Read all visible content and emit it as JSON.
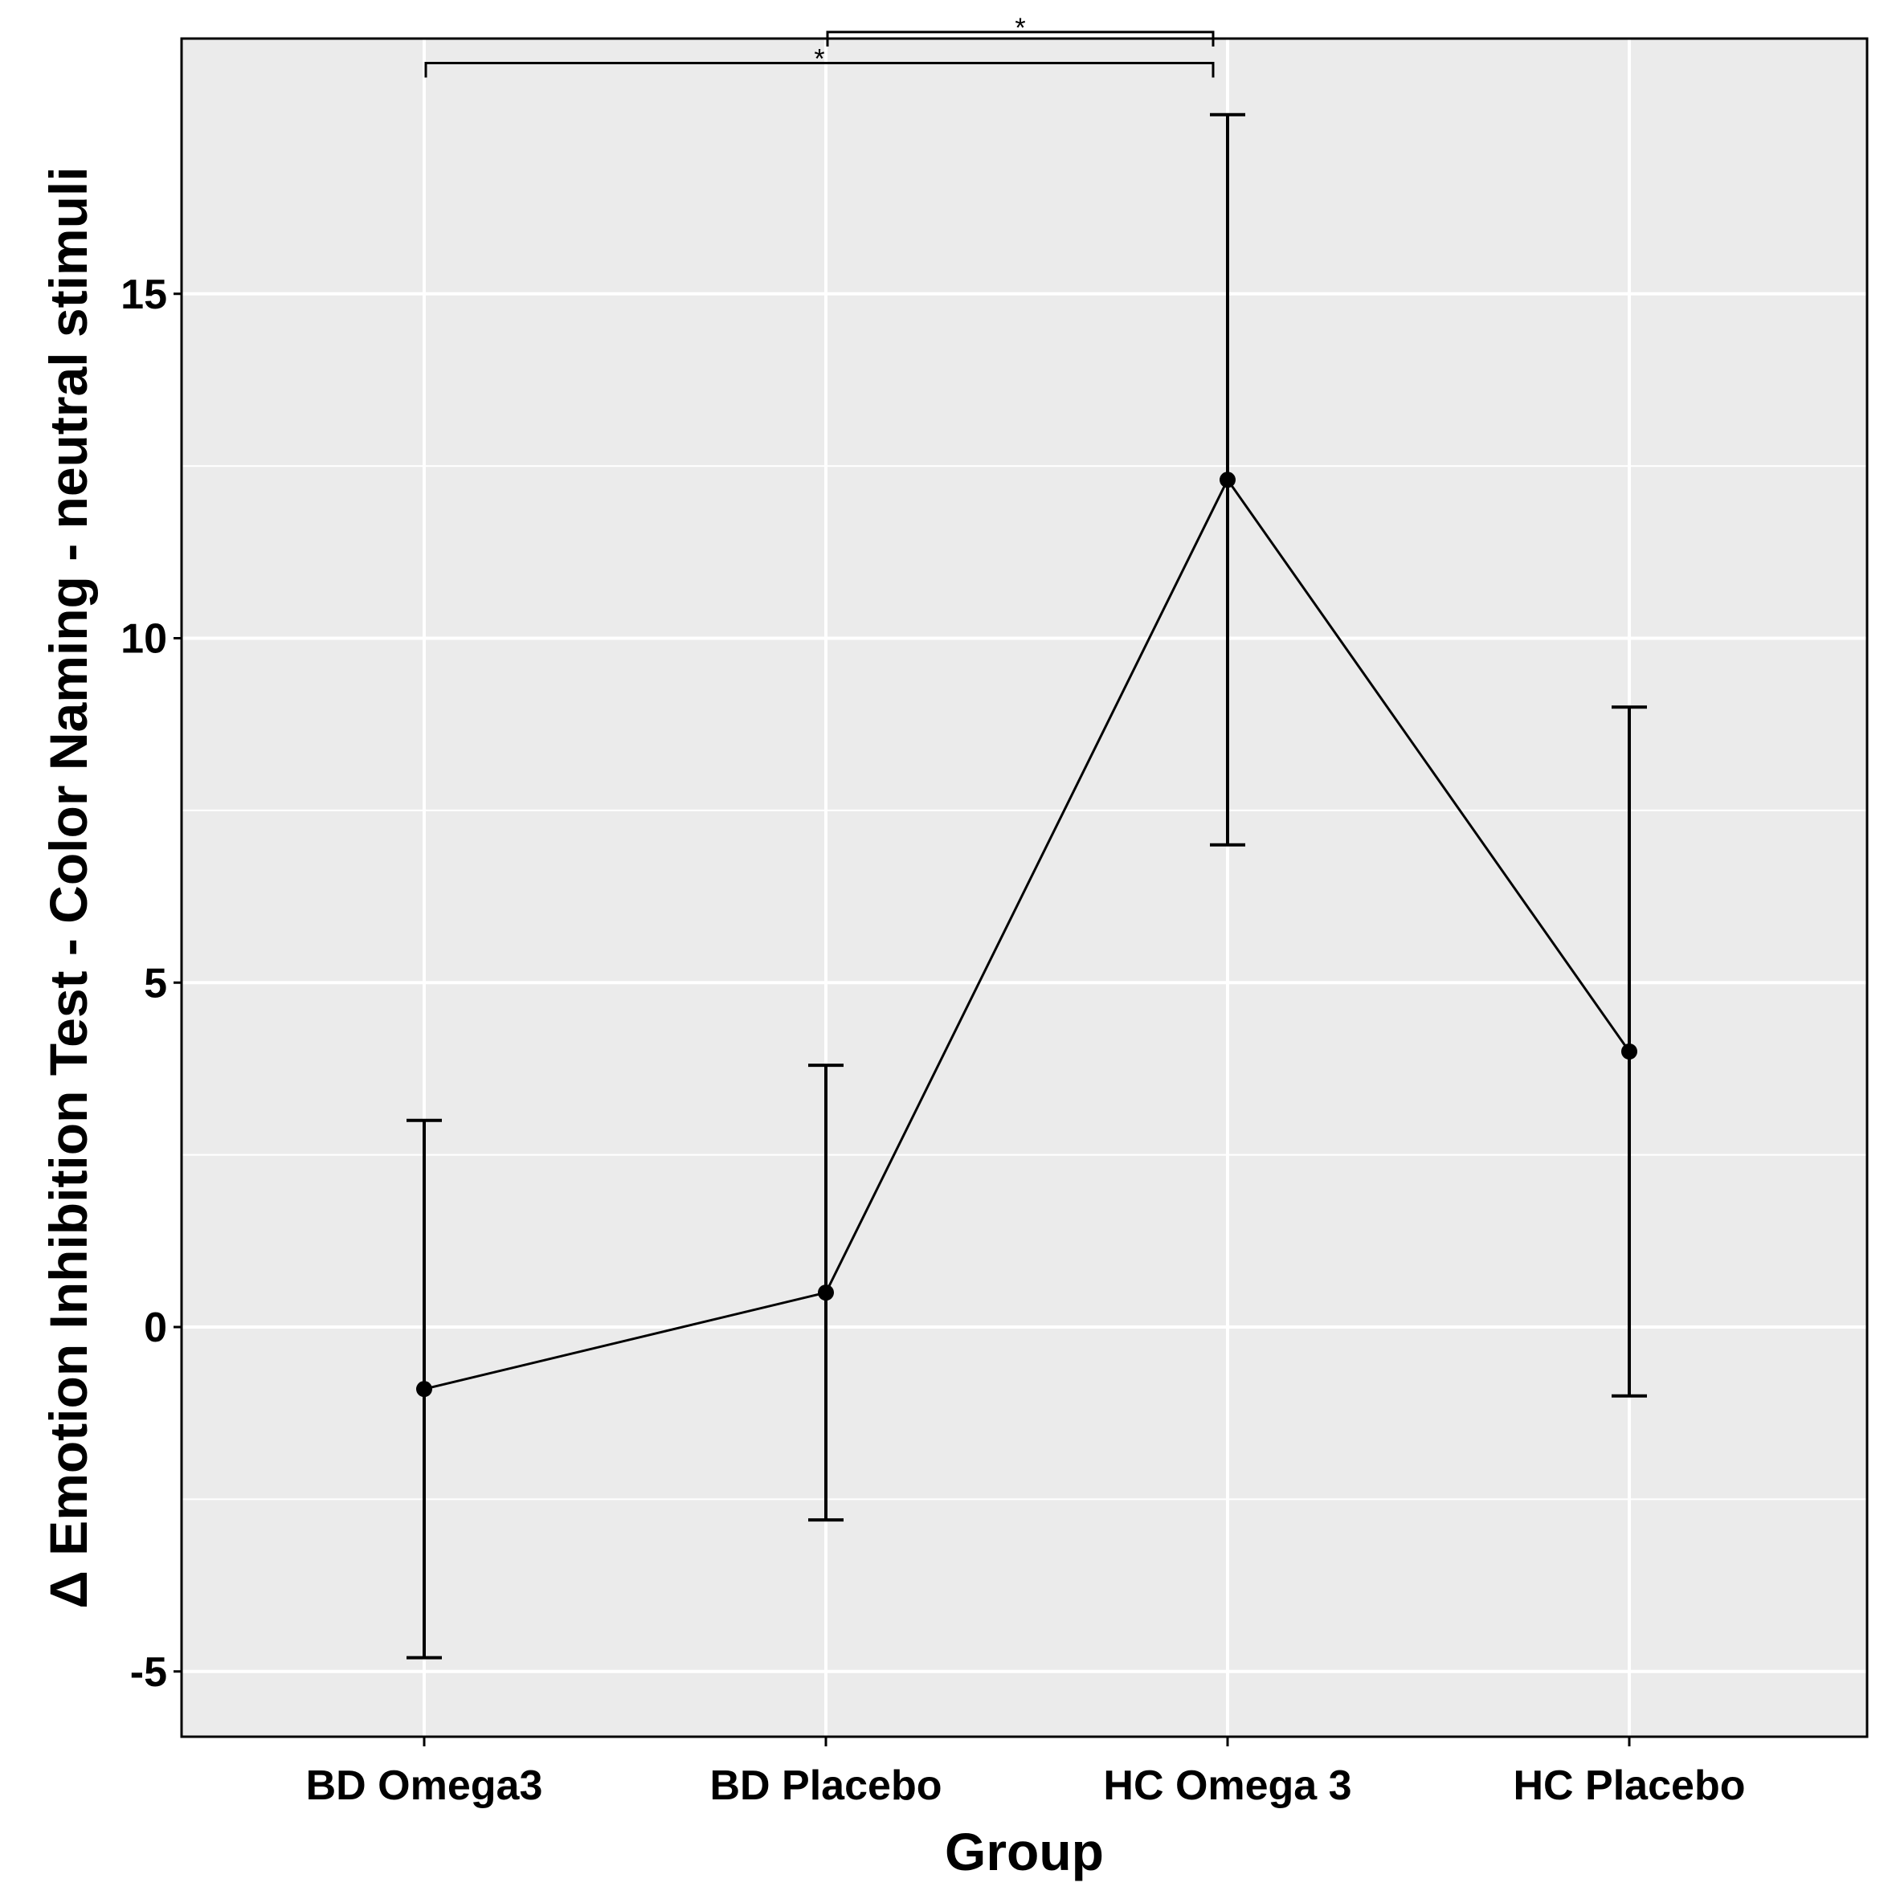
{
  "chart_data": {
    "type": "line",
    "title": "",
    "xlabel": "Group",
    "ylabel": "Δ Emotion Inhibition Test - Color Naming - neutral stimuli",
    "categories": [
      "BD Omega3",
      "BD Placebo",
      "HC Omega 3",
      "HC Placebo"
    ],
    "series": [
      {
        "name": "mean",
        "values": [
          -0.9,
          0.5,
          12.3,
          4.0
        ],
        "error_lower": [
          -4.8,
          -2.8,
          7.0,
          -1.0
        ],
        "error_upper": [
          3.0,
          3.8,
          17.6,
          9.0
        ]
      }
    ],
    "ylim": [
      -5.9,
      18.8
    ],
    "yticks": [
      -5,
      0,
      5,
      10,
      15
    ],
    "ytick_labels": [
      "-5",
      "0",
      "5",
      "10",
      "15"
    ],
    "grid": true,
    "legend": "none",
    "significance": [
      {
        "from": "BD Omega3",
        "to": "HC Omega 3",
        "label": "*",
        "y": 18.35
      },
      {
        "from": "BD Placebo",
        "to": "HC Omega 3",
        "label": "*",
        "y": 18.8
      }
    ],
    "colors": {
      "panel_background": "#EBEBEB",
      "grid": "#FFFFFF",
      "line": "#000000",
      "border": "#000000"
    }
  }
}
